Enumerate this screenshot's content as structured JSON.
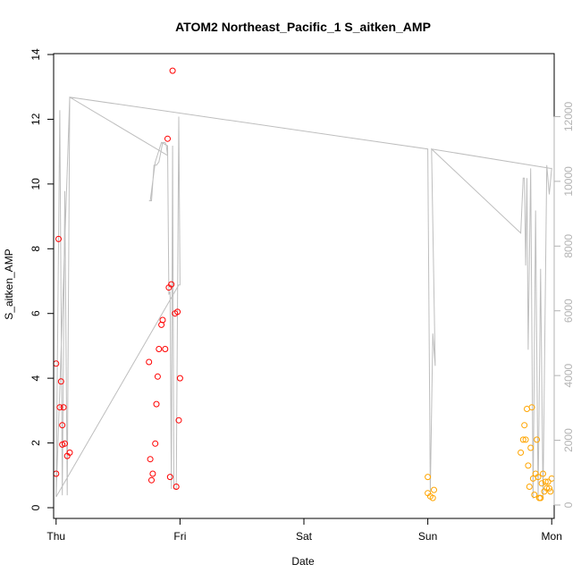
{
  "chart_data": {
    "type": "scatter",
    "title": "ATOM2 Northeast_Pacific_1 S_aitken_AMP",
    "xlabel": "Date",
    "ylabel": "S_aitken_AMP",
    "xlim": [
      -0.02,
      4.02
    ],
    "ylim": [
      0,
      14
    ],
    "x_ticks": [
      0,
      1,
      2,
      3,
      4
    ],
    "x_tick_labels": [
      "Thu",
      "Fri",
      "Sat",
      "Sun",
      "Mon"
    ],
    "y_ticks": [
      0,
      2,
      4,
      6,
      8,
      10,
      12,
      14
    ],
    "y_tick_labels": [
      "0",
      "2",
      "4",
      "6",
      "8",
      "10",
      "12",
      "14"
    ],
    "y2lim": [
      0,
      13200
    ],
    "y2_ticks": [
      0,
      2000,
      4000,
      6000,
      8000,
      10000,
      12000
    ],
    "y2_tick_labels": [
      "0",
      "2000",
      "4000",
      "6000",
      "8000",
      "10000",
      "12000"
    ],
    "grid": false,
    "colors": {
      "red": "#ff0000",
      "orange": "#ffa500",
      "line": "#bebebe"
    },
    "series": [
      {
        "color": "red",
        "points": [
          [
            0.0,
            1.05
          ],
          [
            0.0,
            4.45
          ],
          [
            0.02,
            8.3
          ],
          [
            0.04,
            3.9
          ],
          [
            0.03,
            3.1
          ],
          [
            0.06,
            3.1
          ],
          [
            0.05,
            2.55
          ],
          [
            0.05,
            1.95
          ],
          [
            0.07,
            1.98
          ],
          [
            0.09,
            1.6
          ],
          [
            0.11,
            1.7
          ],
          [
            0.75,
            4.5
          ],
          [
            0.76,
            1.5
          ],
          [
            0.77,
            0.85
          ],
          [
            0.78,
            1.05
          ],
          [
            0.8,
            1.98
          ],
          [
            0.81,
            3.2
          ],
          [
            0.82,
            4.05
          ],
          [
            0.83,
            4.9
          ],
          [
            0.85,
            5.65
          ],
          [
            0.86,
            5.8
          ],
          [
            0.88,
            4.9
          ],
          [
            0.9,
            11.4
          ],
          [
            0.91,
            6.8
          ],
          [
            0.92,
            0.95
          ],
          [
            0.93,
            6.9
          ],
          [
            0.94,
            13.5
          ],
          [
            0.96,
            6.0
          ],
          [
            0.97,
            0.65
          ],
          [
            0.98,
            6.05
          ],
          [
            0.99,
            2.7
          ],
          [
            1.0,
            4.0
          ]
        ]
      },
      {
        "color": "orange",
        "points": [
          [
            3.0,
            0.95
          ],
          [
            3.0,
            0.45
          ],
          [
            3.02,
            0.35
          ],
          [
            3.04,
            0.3
          ],
          [
            3.05,
            0.55
          ],
          [
            3.75,
            1.7
          ],
          [
            3.77,
            2.1
          ],
          [
            3.78,
            2.55
          ],
          [
            3.79,
            2.1
          ],
          [
            3.8,
            3.05
          ],
          [
            3.81,
            1.3
          ],
          [
            3.82,
            0.65
          ],
          [
            3.83,
            1.85
          ],
          [
            3.84,
            3.1
          ],
          [
            3.85,
            0.9
          ],
          [
            3.86,
            0.4
          ],
          [
            3.87,
            1.05
          ],
          [
            3.88,
            2.1
          ],
          [
            3.89,
            0.95
          ],
          [
            3.9,
            0.3
          ],
          [
            3.91,
            0.3
          ],
          [
            3.92,
            0.75
          ],
          [
            3.93,
            1.05
          ],
          [
            3.94,
            0.5
          ],
          [
            3.95,
            0.8
          ],
          [
            3.96,
            0.6
          ],
          [
            3.97,
            0.8
          ],
          [
            3.98,
            0.6
          ],
          [
            3.99,
            0.5
          ],
          [
            4.0,
            0.9
          ]
        ]
      }
    ],
    "line_series": {
      "axis": "y2",
      "color": "line",
      "points": [
        [
          0.0,
          250
        ],
        [
          0.03,
          12200
        ],
        [
          0.05,
          300
        ],
        [
          0.07,
          9700
        ],
        [
          0.09,
          300
        ],
        [
          0.11,
          12600
        ],
        [
          0.9,
          10800
        ],
        [
          0.89,
          11100
        ],
        [
          0.88,
          11200
        ],
        [
          0.86,
          11200
        ],
        [
          0.83,
          10600
        ],
        [
          0.81,
          10500
        ],
        [
          0.79,
          10500
        ],
        [
          0.77,
          9400
        ],
        [
          0.75,
          9400
        ],
        [
          0.76,
          9400
        ],
        [
          0.8,
          10600
        ],
        [
          0.85,
          11200
        ],
        [
          0.9,
          11100
        ],
        [
          0.91,
          6500
        ],
        [
          0.92,
          6600
        ],
        [
          0.93,
          500
        ],
        [
          0.94,
          11100
        ],
        [
          0.95,
          500
        ],
        [
          0.97,
          500
        ],
        [
          0.99,
          12000
        ],
        [
          1.0,
          6800
        ],
        [
          0.99,
          6800
        ],
        [
          0.0,
          250
        ],
        [
          0.11,
          12600
        ],
        [
          3.0,
          11000
        ],
        [
          3.02,
          400
        ],
        [
          3.04,
          5300
        ],
        [
          3.06,
          4300
        ],
        [
          3.03,
          11000
        ],
        [
          3.75,
          8400
        ],
        [
          3.77,
          10100
        ],
        [
          3.78,
          10100
        ],
        [
          3.79,
          7400
        ],
        [
          3.8,
          10100
        ],
        [
          3.81,
          4800
        ],
        [
          3.83,
          10400
        ],
        [
          3.85,
          200
        ],
        [
          3.87,
          9100
        ],
        [
          3.89,
          200
        ],
        [
          3.91,
          7300
        ],
        [
          3.93,
          200
        ],
        [
          3.96,
          10500
        ],
        [
          3.98,
          9600
        ],
        [
          4.0,
          10400
        ],
        [
          3.99,
          10400
        ],
        [
          3.03,
          11000
        ]
      ]
    }
  }
}
